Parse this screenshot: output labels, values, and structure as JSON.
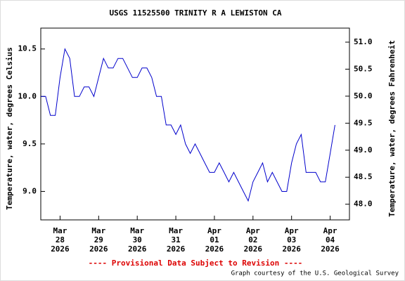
{
  "chart_data": {
    "type": "line",
    "title": "USGS 11525500 TRINITY R A LEWISTON CA",
    "ylabel": "Temperature, water, degrees Celsius",
    "y2label": "Temperature, water, degrees Fahrenheit",
    "footer": "---- Provisional Data Subject to Revision ----",
    "credit": "Graph courtesy of the U.S. Geological Survey",
    "xlim": [
      "2026-03-27T12:00",
      "2026-04-04T12:00"
    ],
    "xticks": [
      {
        "value": "2026-03-28",
        "label": "Mar\n28\n2026"
      },
      {
        "value": "2026-03-29",
        "label": "Mar\n29\n2026"
      },
      {
        "value": "2026-03-30",
        "label": "Mar\n30\n2026"
      },
      {
        "value": "2026-03-31",
        "label": "Mar\n31\n2026"
      },
      {
        "value": "2026-04-01",
        "label": "Apr\n01\n2026"
      },
      {
        "value": "2026-04-02",
        "label": "Apr\n02\n2026"
      },
      {
        "value": "2026-04-03",
        "label": "Apr\n03\n2026"
      },
      {
        "value": "2026-04-04",
        "label": "Apr\n04\n2026"
      }
    ],
    "ylim": [
      8.7,
      10.72
    ],
    "yticks": [
      {
        "value": 9,
        "label": "9.0"
      },
      9.5,
      {
        "value": 10,
        "label": "10.0"
      },
      10.5
    ],
    "y2lim": [
      47.71,
      51.26
    ],
    "y2ticks": [
      {
        "value": 48,
        "label": "48.0"
      },
      48.5,
      {
        "value": 49,
        "label": "49.0"
      },
      49.5,
      {
        "value": 50,
        "label": "50.0"
      },
      50.5,
      {
        "value": 51,
        "label": "51.0"
      }
    ],
    "series": [
      {
        "color": "#0000cc",
        "values": [
          10.0,
          10.0,
          9.8,
          9.8,
          10.2,
          10.5,
          10.4,
          10.0,
          10.0,
          10.1,
          10.1,
          10.0,
          10.2,
          10.4,
          10.3,
          10.3,
          10.4,
          10.4,
          10.3,
          10.2,
          10.2,
          10.3,
          10.3,
          10.2,
          10.0,
          10.0,
          9.7,
          9.7,
          9.6,
          9.7,
          9.5,
          9.4,
          9.5,
          9.4,
          9.3,
          9.2,
          9.2,
          9.3,
          9.2,
          9.1,
          9.2,
          9.1,
          9.0,
          8.9,
          9.1,
          9.2,
          9.3,
          9.1,
          9.2,
          9.1,
          9.0,
          9.0,
          9.3,
          9.5,
          9.6,
          9.2,
          9.2,
          9.2,
          9.1,
          9.1,
          9.4,
          9.7,
          null,
          null,
          null
        ]
      }
    ]
  }
}
